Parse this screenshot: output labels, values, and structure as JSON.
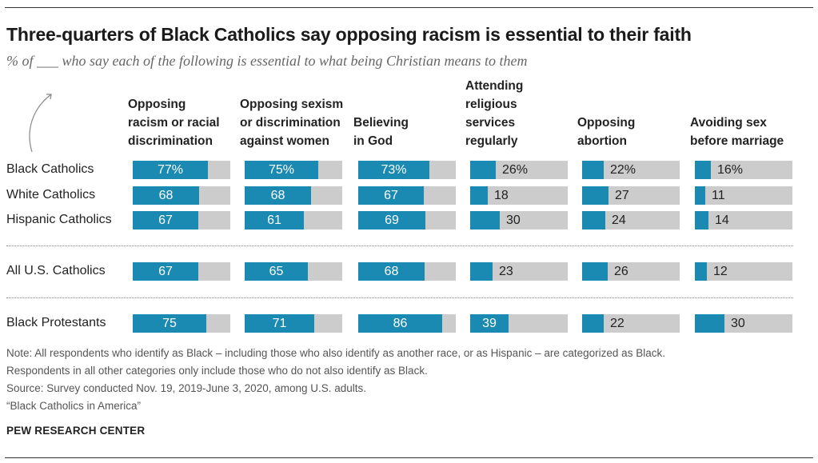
{
  "title": "Three-quarters of Black Catholics say opposing racism is essential to their faith",
  "subtitle": "% of ___ who say each of the following is essential to what being Christian means to them",
  "chart_data": {
    "type": "bar",
    "orientation": "horizontal",
    "xlim": [
      0,
      100
    ],
    "categories": [
      "Black Catholics",
      "White Catholics",
      "Hispanic Catholics",
      "All U.S. Catholics",
      "Black Protestants"
    ],
    "series": [
      {
        "name": "Opposing racism or racial discrimination",
        "lines": [
          "Opposing",
          "racism or racial",
          "discrimination"
        ],
        "values": [
          77,
          68,
          67,
          67,
          75
        ]
      },
      {
        "name": "Opposing sexism or discrimination against women",
        "lines": [
          "Opposing sexism",
          "or discrimination",
          "against women"
        ],
        "values": [
          75,
          68,
          61,
          65,
          71
        ]
      },
      {
        "name": "Believing in God",
        "lines": [
          "Believing",
          "in God"
        ],
        "values": [
          73,
          67,
          69,
          68,
          86
        ]
      },
      {
        "name": "Attending religious services regularly",
        "lines": [
          "Attending",
          "religious",
          "services",
          "regularly"
        ],
        "values": [
          26,
          18,
          30,
          23,
          39
        ]
      },
      {
        "name": "Opposing abortion",
        "lines": [
          "Opposing",
          "abortion"
        ],
        "values": [
          22,
          27,
          24,
          26,
          22
        ]
      },
      {
        "name": "Avoiding sex before marriage",
        "lines": [
          "Avoiding sex",
          "before marriage"
        ],
        "values": [
          16,
          11,
          14,
          12,
          30
        ]
      }
    ],
    "percent_on_first_row": true
  },
  "notes": [
    "Note: All respondents who identify as Black – including those who also identify as another race, or as Hispanic – are categorized as Black.",
    "Respondents in all other categories only include those who do not also identify as Black.",
    "Source: Survey conducted Nov. 19, 2019-June 3, 2020, among U.S. adults.",
    "“Black Catholics in America”"
  ],
  "footer": "PEW RESEARCH CENTER",
  "colors": {
    "fill": "#1b8ab3",
    "track": "#cccccc"
  }
}
